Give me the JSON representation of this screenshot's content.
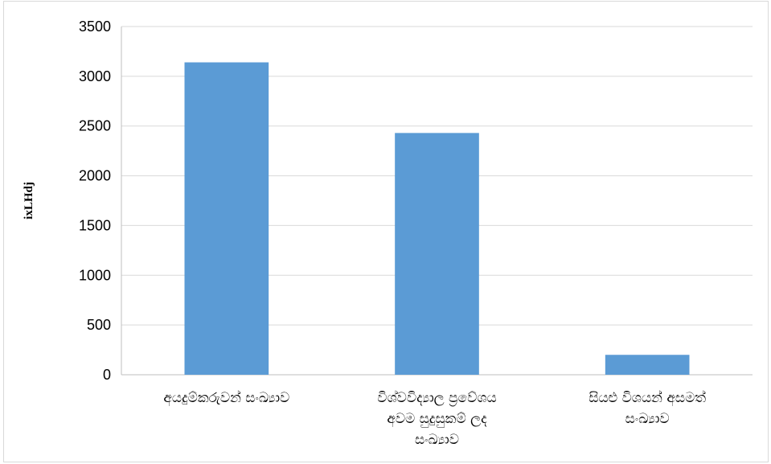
{
  "chart_data": {
    "type": "bar",
    "categories": [
      [
        "අයදුම්කරුවන් සංඛ්‍යාව"
      ],
      [
        "විශ්වවිද්‍යාල ප්‍රවේශය",
        "අවම සුදුසුකම් ලද",
        "සංඛ්‍යාව"
      ],
      [
        "සියළු විශයන් අසමත්",
        "සංඛ්‍යාව"
      ]
    ],
    "values": [
      3140,
      2430,
      200
    ],
    "ylabel": "ixLHdj",
    "xlabel": "",
    "ylim": [
      0,
      3500
    ],
    "yticks": [
      0,
      500,
      1000,
      1500,
      2000,
      2500,
      3000,
      3500
    ],
    "grid": true,
    "legend": "none",
    "colors": {
      "bar": "#5b9bd5",
      "grid": "#d9d9d9",
      "axis": "#bfbfbf"
    }
  }
}
